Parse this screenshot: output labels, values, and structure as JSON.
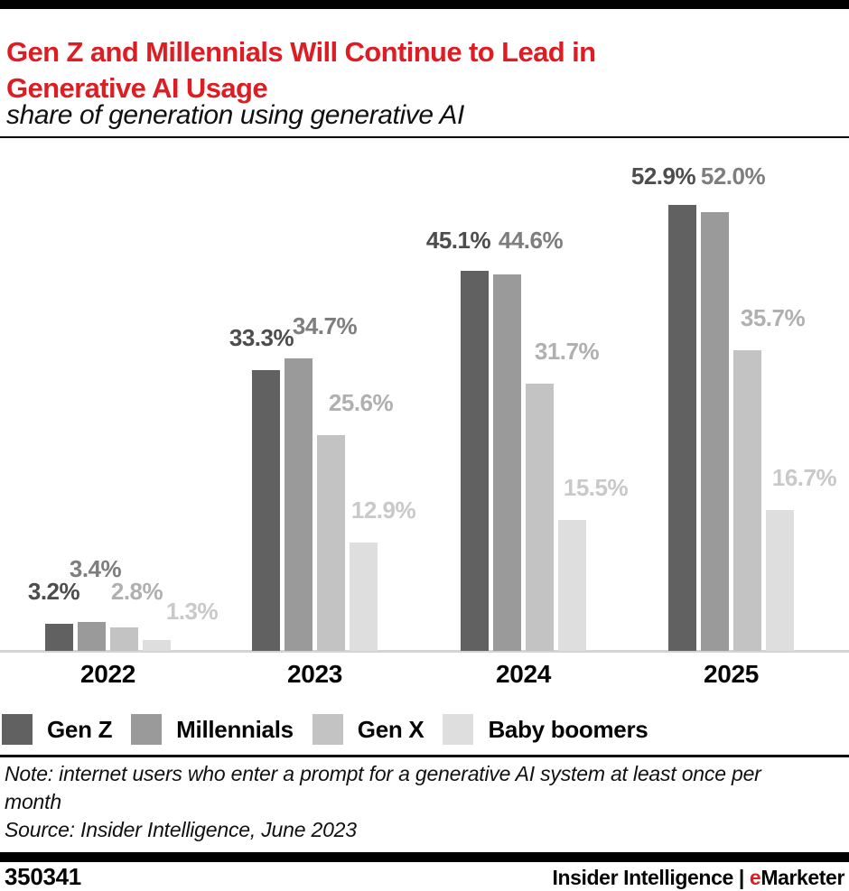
{
  "page": {
    "title_lines": [
      "Gen Z and Millennials Will Continue to Lead in",
      "Generative AI Usage"
    ],
    "subtitle": "share of generation using generative AI"
  },
  "chart_data": {
    "type": "bar",
    "title": "Gen Z and Millennials Will Continue to Lead in Generative AI Usage",
    "subtitle": "share of generation using generative AI",
    "categories": [
      "2022",
      "2023",
      "2024",
      "2025"
    ],
    "series": [
      {
        "name": "Gen Z",
        "color": "#616161",
        "label_color": "#4d4d4d",
        "values": [
          3.2,
          33.3,
          45.1,
          52.9
        ]
      },
      {
        "name": "Millennials",
        "color": "#9a9a9a",
        "label_color": "#7e7e7e",
        "values": [
          3.4,
          34.7,
          44.6,
          52.0
        ]
      },
      {
        "name": "Gen X",
        "color": "#c3c3c3",
        "label_color": "#b0b0b0",
        "values": [
          2.8,
          25.6,
          31.7,
          35.7
        ]
      },
      {
        "name": "Baby boomers",
        "color": "#dedede",
        "label_color": "#c9c9c9",
        "values": [
          1.3,
          12.9,
          15.5,
          16.7
        ]
      }
    ],
    "value_suffix": "%",
    "value_decimals": 1,
    "ylim": [
      0,
      60
    ],
    "grid": false,
    "legend_position": "bottom",
    "axis_line_color": "#d4d4d4"
  },
  "notes": {
    "note_lines": [
      "Note: internet users who enter a prompt for a generative AI system at least once per",
      "month"
    ],
    "source": "Source: Insider Intelligence, June 2023"
  },
  "footer": {
    "chart_id": "350341",
    "brand_prefix": "Insider Intelligence",
    "brand_separator": "|",
    "brand_e": "e",
    "brand_rest": "Marketer"
  },
  "colors": {
    "accent_red": "#dd1d23",
    "black": "#000000"
  }
}
